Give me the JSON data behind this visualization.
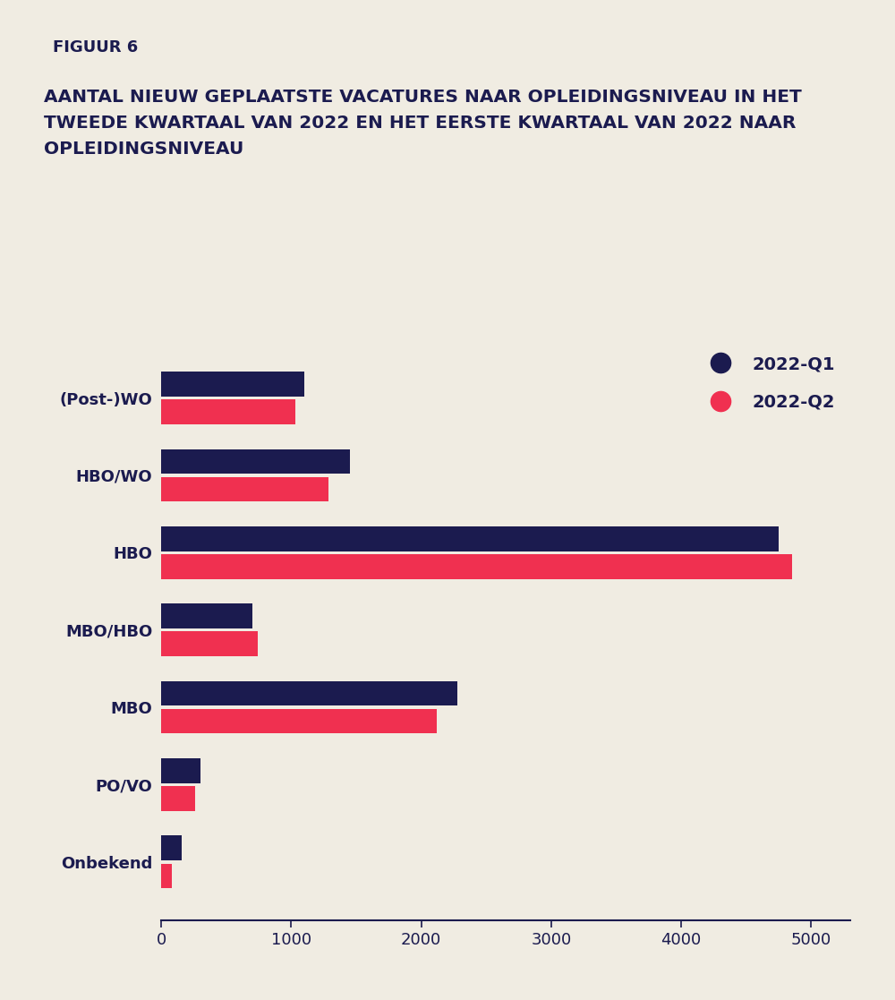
{
  "categories": [
    "(Post-)WO",
    "HBO/WO",
    "HBO",
    "MBO/HBO",
    "MBO",
    "PO/VO",
    "Onbekend"
  ],
  "q1_values": [
    1100,
    1450,
    4750,
    700,
    2280,
    300,
    160
  ],
  "q2_values": [
    1030,
    1290,
    4850,
    740,
    2120,
    260,
    80
  ],
  "q1_color": "#1b1b4f",
  "q2_color": "#f03050",
  "background_color": "#f0ece2",
  "bar_height": 0.32,
  "xlim": [
    0,
    5300
  ],
  "xticks": [
    0,
    1000,
    2000,
    3000,
    4000,
    5000
  ],
  "figuur_label": "FIGUUR 6",
  "figuur_bg": "#80e8e0",
  "figuur_text_color": "#1b1b4f",
  "title_line1": "AANTAL NIEUW GEPLAATSTE VACATURES NAAR OPLEIDINGSNIVEAU IN HET",
  "title_line2": "TWEEDE KWARTAAL VAN 2022 EN HET EERSTE KWARTAAL VAN 2022 NAAR",
  "title_line3": "OPLEIDINGSNIVEAU",
  "legend_q1": "2022-Q1",
  "legend_q2": "2022-Q2",
  "axis_color": "#1b1b4f",
  "tick_label_color": "#1b1b4f",
  "category_label_color": "#1b1b4f"
}
